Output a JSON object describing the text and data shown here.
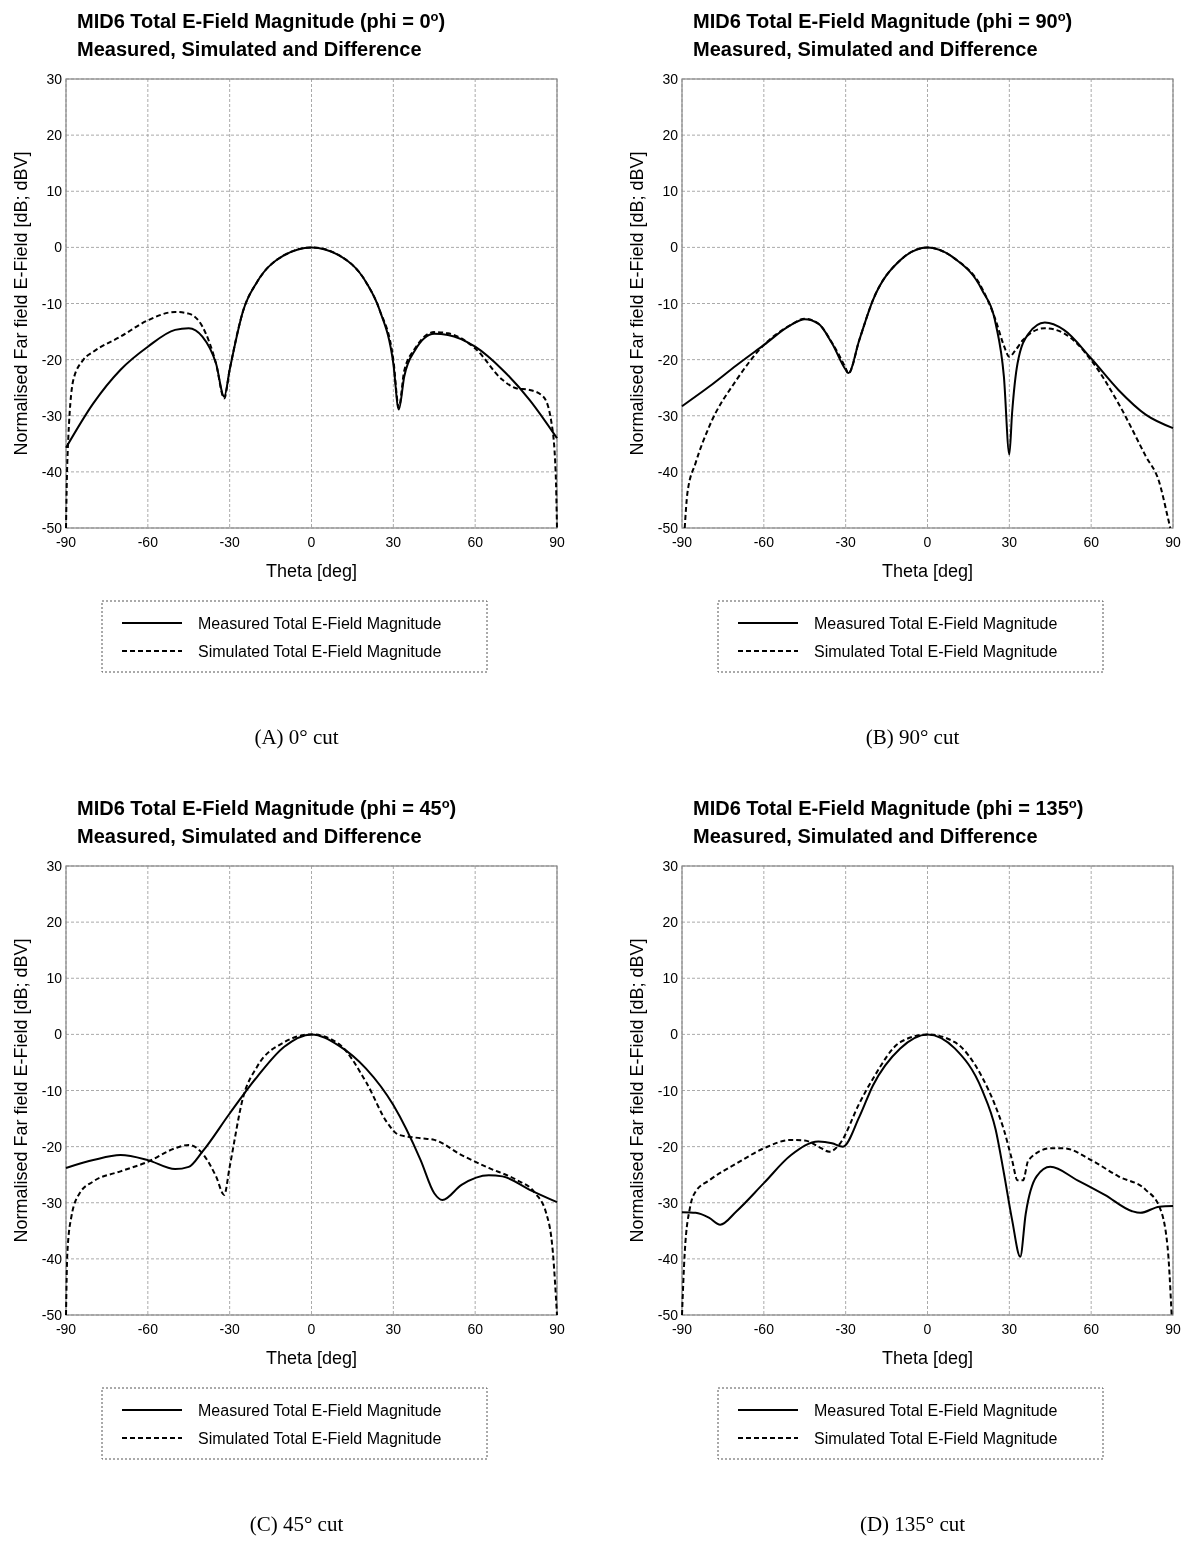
{
  "chart_data": [
    {
      "type": "line",
      "title": "MID6 Total E-Field Magnitude (phi = 0$^{o}$)",
      "subtitle": "Measured, Simulated and Difference",
      "xlabel": "Theta [deg]",
      "ylabel": "Normalised Far field E-Field [dB; dBV]",
      "xlim": [
        -90,
        90
      ],
      "xticks": [
        -90,
        -60,
        -30,
        0,
        30,
        60,
        90
      ],
      "ylim": [
        -50,
        30
      ],
      "yticks": [
        -50,
        -40,
        -30,
        -20,
        -10,
        0,
        10,
        20,
        30
      ],
      "grid": true,
      "legend": "bottom",
      "annotations": [
        "(A) 0° cut"
      ],
      "series": [
        {
          "name": "Measured Total E-Field Magnitude",
          "color": "#000000",
          "line_style": "solid",
          "x": [
            -90,
            -80,
            -70,
            -60,
            -50,
            -45,
            -40,
            -35,
            -32,
            -30,
            -25,
            -20,
            -10,
            0,
            10,
            20,
            25,
            30,
            32,
            34,
            38,
            45,
            50,
            60,
            70,
            80,
            90
          ],
          "values": [
            -35.7,
            -27.8,
            -21.8,
            -17.7,
            -14.7,
            -14.4,
            -15.9,
            -20.7,
            -26.6,
            -21.8,
            -11.2,
            -6.2,
            -1.4,
            0,
            -1.4,
            -6.2,
            -11.2,
            -20.7,
            -28.9,
            -23,
            -18.3,
            -15.4,
            -15.6,
            -17.7,
            -21.8,
            -27.2,
            -34
          ]
        },
        {
          "name": "Simulated Total E-Field Magnitude",
          "color": "#000000",
          "line_style": "dashed",
          "x": [
            -90,
            -89.5,
            -87.3,
            -83.6,
            -80,
            -70,
            -60,
            -50,
            -45,
            -40,
            -35,
            -32,
            -30,
            -25,
            -20,
            -10,
            0,
            10,
            20,
            25,
            30,
            32,
            34,
            38,
            45,
            50,
            60,
            70,
            75,
            80,
            85,
            88,
            89.5,
            90
          ],
          "values": [
            -50,
            -38,
            -23.6,
            -20,
            -18.6,
            -15.9,
            -13,
            -11.5,
            -11.8,
            -14.1,
            -20.7,
            -26.9,
            -21.8,
            -11.2,
            -6.2,
            -1.4,
            0,
            -1.4,
            -6.2,
            -11.2,
            -20,
            -28.5,
            -22,
            -18,
            -15.1,
            -15.3,
            -18,
            -23.6,
            -25.1,
            -25.4,
            -26.6,
            -31.3,
            -40,
            -50
          ]
        }
      ]
    },
    {
      "type": "line",
      "title": "MID6 Total E-Field Magnitude (phi = 90$^{o}$)",
      "subtitle": "Measured, Simulated and Difference",
      "xlabel": "Theta [deg]",
      "ylabel": "Normalised Far field E-Field [dB; dBV]",
      "xlim": [
        -90,
        90
      ],
      "xticks": [
        -90,
        -60,
        -30,
        0,
        30,
        60,
        90
      ],
      "ylim": [
        -50,
        30
      ],
      "yticks": [
        -50,
        -40,
        -30,
        -20,
        -10,
        0,
        10,
        20,
        30
      ],
      "grid": true,
      "legend": "bottom",
      "annotations": [
        "(B) 90° cut"
      ],
      "series": [
        {
          "name": "Measured Total E-Field Magnitude",
          "color": "#000000",
          "line_style": "solid",
          "x": [
            -90,
            -80,
            -70,
            -60,
            -50,
            -45,
            -40,
            -35,
            -30,
            -29,
            -25,
            -20,
            -10,
            0,
            10,
            20,
            25,
            28,
            30,
            31,
            33,
            37,
            43,
            50,
            60,
            70,
            80,
            90
          ],
          "values": [
            -28.3,
            -24.8,
            -21,
            -17.4,
            -13.8,
            -12.8,
            -13.6,
            -17.1,
            -21.8,
            -22.4,
            -16.5,
            -9.4,
            -2.3,
            0,
            -2,
            -7.6,
            -13.6,
            -23,
            -36.9,
            -29.6,
            -20.7,
            -15.4,
            -13.4,
            -14.7,
            -19.8,
            -25.4,
            -29.8,
            -32.2
          ]
        },
        {
          "name": "Simulated Total E-Field Magnitude",
          "color": "#000000",
          "line_style": "dashed",
          "x": [
            -89,
            -88,
            -85,
            -80,
            -70,
            -60,
            -50,
            -45,
            -40,
            -35,
            -30,
            -29,
            -25,
            -20,
            -10,
            0,
            10,
            20,
            25,
            28,
            30,
            32,
            35,
            43,
            50,
            60,
            70,
            80,
            85,
            88,
            89
          ],
          "values": [
            -50,
            -43.7,
            -38.4,
            -31.9,
            -23.6,
            -17.4,
            -13.8,
            -12.7,
            -13.6,
            -17,
            -21.5,
            -22.5,
            -16.5,
            -9.4,
            -2.3,
            0,
            -2,
            -7.3,
            -13,
            -17.5,
            -19.5,
            -18.5,
            -16.5,
            -14.4,
            -15.3,
            -20.1,
            -27.8,
            -37.2,
            -41.9,
            -47.9,
            -50
          ]
        }
      ]
    },
    {
      "type": "line",
      "title": "MID6 Total E-Field Magnitude (phi = 45$^{o}$)",
      "subtitle": "Measured, Simulated and Difference",
      "xlabel": "Theta [deg]",
      "ylabel": "Normalised Far field E-Field [dB; dBV]",
      "xlim": [
        -90,
        90
      ],
      "xticks": [
        -90,
        -60,
        -30,
        0,
        30,
        60,
        90
      ],
      "ylim": [
        -50,
        30
      ],
      "yticks": [
        -50,
        -40,
        -30,
        -20,
        -10,
        0,
        10,
        20,
        30
      ],
      "grid": true,
      "legend": "bottom",
      "annotations": [
        "(C) 45° cut"
      ],
      "series": [
        {
          "name": "Measured Total E-Field Magnitude",
          "color": "#000000",
          "line_style": "solid",
          "x": [
            -90,
            -80,
            -70,
            -60,
            -50,
            -45,
            -40,
            -30,
            -20,
            -10,
            0,
            10,
            20,
            30,
            40,
            45,
            48,
            55,
            65,
            70,
            80,
            90
          ],
          "values": [
            -23.8,
            -22.4,
            -21.5,
            -22.4,
            -24,
            -23.6,
            -20.9,
            -14.1,
            -7.6,
            -2.2,
            0,
            -2,
            -6.1,
            -12.6,
            -22.4,
            -28.3,
            -29.5,
            -26.8,
            -25.1,
            -25.3,
            -27.7,
            -29.9
          ]
        },
        {
          "name": "Simulated Total E-Field Magnitude",
          "color": "#000000",
          "line_style": "dashed",
          "x": [
            -90,
            -89.5,
            -88,
            -85,
            -80,
            -70,
            -60,
            -50,
            -45,
            -40,
            -35,
            -32,
            -30,
            -25,
            -20,
            -10,
            0,
            10,
            20,
            28,
            32,
            40,
            45,
            55,
            65,
            75,
            82,
            86,
            88.5,
            90
          ],
          "values": [
            -50,
            -38.9,
            -32.4,
            -28.3,
            -26.2,
            -24.4,
            -22.7,
            -20.3,
            -19.7,
            -21.2,
            -25.3,
            -28.6,
            -23.6,
            -11.1,
            -5.8,
            -1.4,
            0,
            -1.7,
            -8.5,
            -15.9,
            -17.9,
            -18.5,
            -18.8,
            -21.5,
            -23.8,
            -25.9,
            -28.3,
            -31.8,
            -38.9,
            -50
          ]
        }
      ]
    },
    {
      "type": "line",
      "title": "MID6 Total E-Field Magnitude (phi = 135$^{o}$)",
      "subtitle": "Measured, Simulated and Difference",
      "xlabel": "Theta [deg]",
      "ylabel": "Normalised Far field E-Field [dB; dBV]",
      "xlim": [
        -90,
        90
      ],
      "xticks": [
        -90,
        -60,
        -30,
        0,
        30,
        60,
        90
      ],
      "ylim": [
        -50,
        30
      ],
      "yticks": [
        -50,
        -40,
        -30,
        -20,
        -10,
        0,
        10,
        20,
        30
      ],
      "grid": true,
      "legend": "bottom",
      "annotations": [
        "(D) 135° cut"
      ],
      "series": [
        {
          "name": "Measured Total E-Field Magnitude",
          "color": "#000000",
          "line_style": "solid",
          "x": [
            -90,
            -85,
            -80,
            -76,
            -70,
            -60,
            -50,
            -40,
            -35,
            -31,
            -25,
            -20,
            -10,
            0,
            10,
            20,
            25,
            28,
            31,
            34,
            36,
            40,
            45,
            55,
            65,
            75,
            78,
            85,
            90
          ],
          "values": [
            -31.7,
            -31.8,
            -32.7,
            -33.9,
            -31.5,
            -26.5,
            -21.5,
            -19.1,
            -19.4,
            -20,
            -14.7,
            -9.1,
            -2.5,
            0,
            -2.5,
            -9.9,
            -17,
            -24.7,
            -33,
            -39.6,
            -32,
            -25.3,
            -23.6,
            -26,
            -28.6,
            -31.5,
            -31.8,
            -30.7,
            -30.6
          ]
        },
        {
          "name": "Simulated Total E-Field Magnitude",
          "color": "#000000",
          "line_style": "dashed",
          "x": [
            -90,
            -89,
            -87,
            -85,
            -80,
            -70,
            -60,
            -50,
            -45,
            -40,
            -36,
            -32,
            -25,
            -20,
            -10,
            0,
            10,
            20,
            25,
            28,
            31,
            33,
            35,
            37,
            45,
            50,
            60,
            70,
            80,
            85,
            88,
            89.5
          ],
          "values": [
            -50,
            -38.9,
            -30.7,
            -28,
            -26,
            -23,
            -20.3,
            -18.8,
            -18.9,
            -20,
            -20.9,
            -19.4,
            -12.3,
            -7.9,
            -1.4,
            0,
            -1.4,
            -7.6,
            -12.9,
            -17,
            -22.4,
            -26,
            -26,
            -22.4,
            -20.3,
            -20.3,
            -22.4,
            -25.3,
            -27.7,
            -30.7,
            -37.8,
            -50
          ]
        }
      ]
    }
  ]
}
